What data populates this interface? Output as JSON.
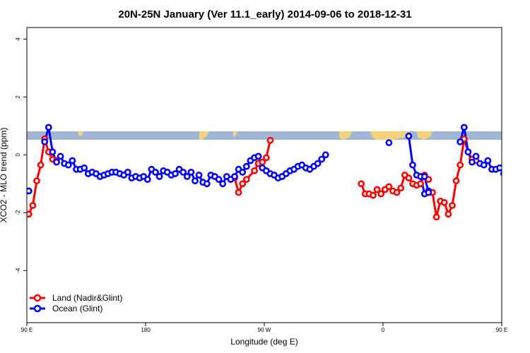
{
  "chart_data": {
    "type": "line",
    "title": "20N-25N January (Ver 11.1_early)   2014-09-06 to 2018-12-31",
    "xlabel": "Longitude (deg E)",
    "ylabel": "XCO2 - MLO trend (ppm)",
    "xlim": [
      90,
      450
    ],
    "ylim": [
      -5.8,
      4.4
    ],
    "x_ticks": [
      {
        "value": 90,
        "label": "90 E"
      },
      {
        "value": 180,
        "label": "180"
      },
      {
        "value": 270,
        "label": "90 W"
      },
      {
        "value": 360,
        "label": "0"
      },
      {
        "value": 450,
        "label": "90 E"
      },
      {
        "value": 540,
        "label": "180"
      }
    ],
    "y_ticks": [
      {
        "value": -4,
        "label": "-4"
      },
      {
        "value": -2,
        "label": "-2"
      },
      {
        "value": 0,
        "label": "0"
      },
      {
        "value": 2,
        "label": "2"
      },
      {
        "value": 4,
        "label": "4"
      }
    ],
    "legend": {
      "position": "bottom-left"
    },
    "colors": {
      "land": "#ff0000",
      "ocean": "#0000ff",
      "sea_strip": "#9fb7d6",
      "land_strip": "#f5d27a"
    },
    "series": [
      {
        "name": "Land (Nadir&Glint)",
        "color": "#ff0000",
        "segments": [
          {
            "x": [
              91.5,
              94.5,
              97.5,
              100.5,
              103.5,
              106.5,
              109.5,
              112.5
            ],
            "y": [
              -2.05,
              -1.75,
              -0.9,
              -0.35,
              0.55,
              0.1,
              -0.15,
              -0.2
            ]
          },
          {
            "x": [
              247.5,
              250.5,
              253.5,
              256.5,
              262.5,
              265.5,
              268.5,
              271.5,
              274.5
            ],
            "y": [
              -0.8,
              -1.3,
              -1.0,
              -0.85,
              -0.55,
              -0.3,
              -0.25,
              -0.1,
              0.5
            ]
          },
          {
            "x": [
              343.5,
              346.5,
              349.5,
              352.5,
              355.5,
              358.5,
              361.5,
              364.5,
              367.5,
              370.5,
              373.5,
              376.5,
              379.5,
              382.5,
              385.5,
              388.5,
              391.5,
              394.5
            ],
            "y": [
              -1.0,
              -1.35,
              -1.35,
              -1.4,
              -1.2,
              -1.35,
              -1.2,
              -1.1,
              -1.25,
              -1.3,
              -1.15,
              -0.7,
              -0.8,
              -1.0,
              -1.05,
              -1.0,
              -0.7,
              -0.85
            ]
          },
          {
            "x": [
              397.5,
              400.5,
              403.5,
              406.5,
              409.5,
              412.5,
              415.5,
              418.5,
              421.5,
              424.5,
              427.5,
              430.5
            ],
            "y": [
              -1.3,
              -2.15,
              -1.6,
              -1.65,
              -2.05,
              -1.75,
              -0.9,
              -0.35,
              0.55,
              0.1,
              -0.15,
              -0.2
            ]
          }
        ]
      },
      {
        "name": "Ocean (Glint)",
        "color": "#0000ff",
        "segments": [
          {
            "x": [
              91.5
            ],
            "y": [
              -1.25
            ]
          },
          {
            "x": [
              103.5,
              106.5,
              109.5,
              112.5,
              115.5,
              118.5,
              121.5,
              124.5,
              127.5,
              130.5,
              133.5,
              136.5,
              139.5,
              142.5,
              145.5,
              148.5,
              151.5,
              154.5,
              157.5,
              160.5,
              163.5,
              166.5,
              169.5,
              172.5,
              175.5,
              178.5,
              181.5,
              184.5,
              187.5,
              190.5,
              193.5,
              196.5,
              199.5,
              202.5,
              205.5,
              208.5,
              211.5,
              214.5,
              217.5,
              220.5,
              223.5,
              226.5,
              229.5,
              232.5,
              235.5,
              238.5,
              241.5,
              244.5,
              247.5,
              250.5,
              253.5,
              256.5,
              259.5,
              262.5,
              265.5,
              268.5,
              271.5,
              274.5,
              277.5,
              280.5,
              283.5,
              286.5,
              289.5,
              292.5,
              295.5,
              298.5,
              301.5,
              304.5,
              307.5,
              310.5,
              313.5,
              316.5
            ],
            "y": [
              0.45,
              0.95,
              0.1,
              -0.25,
              -0.05,
              -0.3,
              -0.35,
              -0.2,
              -0.5,
              -0.5,
              -0.45,
              -0.65,
              -0.6,
              -0.65,
              -0.75,
              -0.7,
              -0.65,
              -0.6,
              -0.6,
              -0.65,
              -0.7,
              -0.6,
              -0.8,
              -0.75,
              -0.8,
              -0.75,
              -0.85,
              -0.5,
              -0.6,
              -0.75,
              -0.55,
              -0.6,
              -0.7,
              -0.65,
              -0.5,
              -0.6,
              -0.75,
              -0.6,
              -0.9,
              -0.7,
              -0.95,
              -1.0,
              -0.7,
              -0.75,
              -0.85,
              -1.0,
              -0.75,
              -0.85,
              -0.75,
              -0.5,
              -0.6,
              -0.4,
              -0.2,
              -0.1,
              -0.05,
              -0.45,
              -0.55,
              -0.65,
              -0.7,
              -0.8,
              -0.75,
              -0.65,
              -0.55,
              -0.5,
              -0.4,
              -0.35,
              -0.45,
              -0.5,
              -0.4,
              -0.3,
              -0.15,
              0.0
            ]
          },
          {
            "x": [
              364.5
            ],
            "y": [
              0.42
            ]
          },
          {
            "x": [
              379.5,
              382.5,
              385.5,
              388.5,
              391.5,
              394.5
            ],
            "y": [
              0.65,
              -0.35,
              -0.7,
              -0.75,
              -1.35,
              -1.25
            ]
          },
          {
            "x": [
              391.5,
              394.5
            ],
            "y": [
              -0.75,
              -1.3
            ]
          },
          {
            "x": [
              418.5,
              421.5,
              424.5,
              427.5,
              430.5,
              433.5,
              436.5,
              439.5,
              442.5,
              445.5,
              448.5,
              451.5,
              454.5,
              457.5,
              460.5
            ],
            "y": [
              0.45,
              0.95,
              0.1,
              -0.25,
              -0.05,
              -0.3,
              -0.35,
              -0.2,
              -0.5,
              -0.5,
              -0.45,
              -0.65,
              -0.6,
              -0.65,
              -0.7
            ]
          }
        ]
      }
    ]
  }
}
